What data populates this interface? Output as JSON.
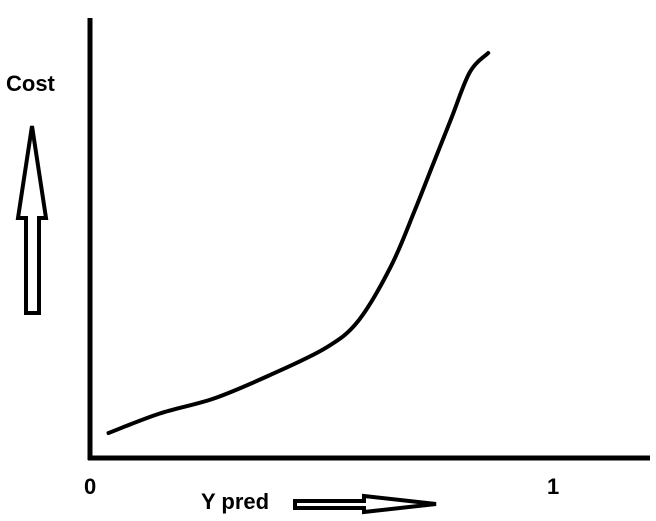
{
  "chart_data": {
    "type": "line",
    "title": "",
    "xlabel": "Y pred",
    "ylabel": "Cost",
    "x_ticks": [
      "0",
      "1"
    ],
    "xlim": [
      0,
      1.2
    ],
    "grid": false,
    "series": [
      {
        "x": [
          0.04,
          0.15,
          0.27,
          0.39,
          0.51,
          0.58,
          0.65,
          0.7,
          0.74,
          0.78,
          0.82,
          0.86
        ],
        "y": [
          0.02,
          0.07,
          0.11,
          0.17,
          0.24,
          0.31,
          0.45,
          0.59,
          0.71,
          0.83,
          0.95,
          1.0
        ]
      }
    ]
  }
}
